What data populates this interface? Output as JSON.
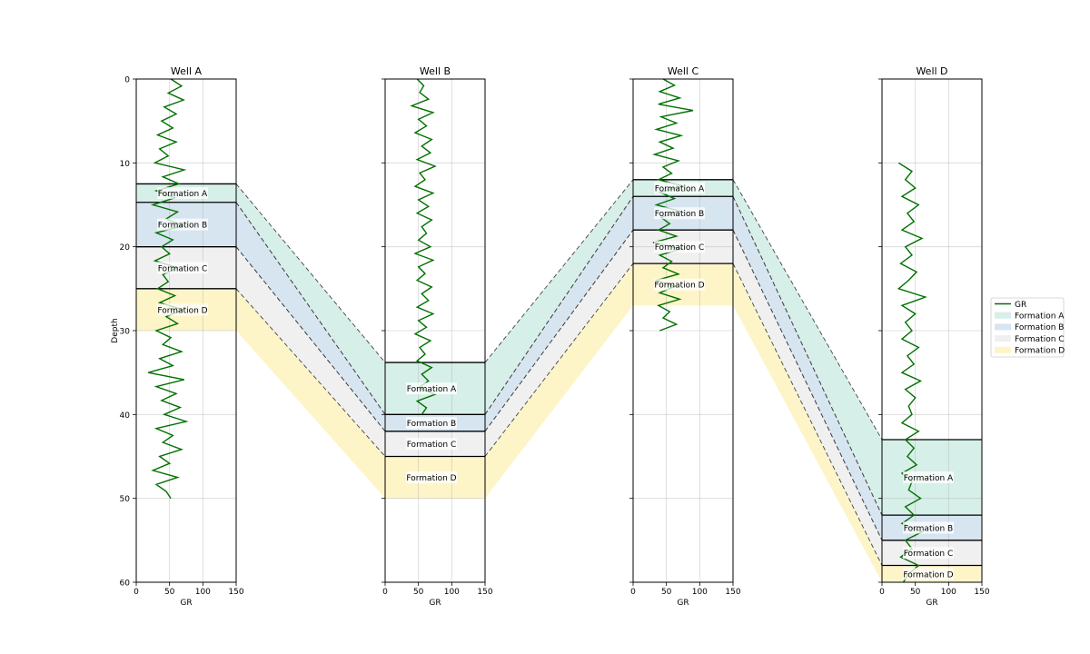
{
  "chart_data": {
    "type": "well-log-correlation",
    "y_axis": {
      "label": "Depth",
      "lim": [
        0,
        60
      ],
      "inverted": true,
      "ticks": [
        0,
        10,
        20,
        30,
        40,
        50,
        60
      ]
    },
    "x_axis": {
      "label": "GR",
      "lim": [
        0,
        150
      ],
      "ticks": [
        0,
        50,
        100,
        150
      ]
    },
    "grid": true,
    "formation_colors": {
      "Formation A": "#d6efe8",
      "Formation B": "#d7e5f1",
      "Formation C": "#f0f0f0",
      "Formation D": "#fdf5c8"
    },
    "log_color": "#007000",
    "wells": [
      {
        "name": "Well A",
        "gr_depth_range": [
          0,
          50
        ],
        "gr": [
          52,
          68,
          48,
          71,
          42,
          60,
          38,
          55,
          32,
          60,
          35,
          48,
          28,
          72,
          40,
          64,
          30,
          58,
          25,
          62,
          45,
          70,
          30,
          55,
          38,
          50,
          28,
          62,
          40,
          48,
          32,
          58,
          35,
          70,
          45,
          62,
          30,
          52,
          40,
          68,
          35,
          55,
          18,
          72,
          30,
          60,
          38,
          66,
          42,
          75,
          30,
          55,
          40,
          68,
          35,
          50,
          25,
          62,
          30,
          45,
          52
        ],
        "formations": [
          {
            "name": "Formation A",
            "top": 12.5,
            "bottom": 14.7
          },
          {
            "name": "Formation B",
            "top": 14.7,
            "bottom": 20.0
          },
          {
            "name": "Formation C",
            "top": 20.0,
            "bottom": 25.0
          },
          {
            "name": "Formation D",
            "top": 25.0,
            "bottom": 30.0
          }
        ]
      },
      {
        "name": "Well B",
        "gr_depth_range": [
          0,
          40
        ],
        "gr": [
          48,
          58,
          52,
          65,
          40,
          72,
          50,
          62,
          45,
          70,
          55,
          68,
          48,
          75,
          52,
          60,
          45,
          72,
          50,
          65,
          48,
          70,
          55,
          62,
          50,
          68,
          45,
          72,
          50,
          60,
          48,
          70,
          55,
          65,
          48,
          72,
          50,
          62,
          45,
          68,
          52,
          60,
          48,
          70,
          55,
          65,
          50,
          75,
          48,
          62,
          55
        ],
        "formations": [
          {
            "name": "Formation A",
            "top": 33.8,
            "bottom": 40.0
          },
          {
            "name": "Formation B",
            "top": 40.0,
            "bottom": 42.0
          },
          {
            "name": "Formation C",
            "top": 42.0,
            "bottom": 45.0
          },
          {
            "name": "Formation D",
            "top": 45.0,
            "bottom": 50.0
          }
        ]
      },
      {
        "name": "Well C",
        "gr_depth_range": [
          0,
          30
        ],
        "gr": [
          45,
          62,
          40,
          70,
          38,
          90,
          42,
          65,
          35,
          72,
          40,
          60,
          32,
          68,
          45,
          58,
          38,
          75,
          40,
          62,
          35,
          70,
          42,
          55,
          38,
          65,
          30,
          72,
          40,
          58,
          45,
          68,
          35,
          62,
          40,
          70,
          38,
          55,
          45,
          65,
          40
        ],
        "formations": [
          {
            "name": "Formation A",
            "top": 12.0,
            "bottom": 14.0
          },
          {
            "name": "Formation B",
            "top": 14.0,
            "bottom": 18.0
          },
          {
            "name": "Formation C",
            "top": 18.0,
            "bottom": 22.0
          },
          {
            "name": "Formation D",
            "top": 22.0,
            "bottom": 27.0
          }
        ]
      },
      {
        "name": "Well D",
        "gr_depth_range": [
          10,
          60
        ],
        "gr": [
          25,
          45,
          35,
          50,
          30,
          55,
          38,
          48,
          30,
          60,
          35,
          45,
          28,
          52,
          40,
          25,
          65,
          30,
          50,
          35,
          45,
          30,
          55,
          38,
          48,
          30,
          58,
          35,
          50,
          40,
          45,
          30,
          55,
          35,
          48,
          38,
          52,
          30,
          45,
          40,
          58,
          35,
          48,
          30,
          60,
          35,
          45,
          28,
          55,
          40,
          32
        ],
        "formations": [
          {
            "name": "Formation A",
            "top": 43.0,
            "bottom": 52.0
          },
          {
            "name": "Formation B",
            "top": 52.0,
            "bottom": 55.0
          },
          {
            "name": "Formation C",
            "top": 55.0,
            "bottom": 58.0
          },
          {
            "name": "Formation D",
            "top": 58.0,
            "bottom": 60.0
          }
        ]
      }
    ],
    "legend": {
      "placement": "right",
      "entries": [
        {
          "label": "GR",
          "kind": "line",
          "color": "#007000"
        },
        {
          "label": "Formation A",
          "kind": "patch",
          "color": "#d6efe8"
        },
        {
          "label": "Formation B",
          "kind": "patch",
          "color": "#d7e5f1"
        },
        {
          "label": "Formation C",
          "kind": "patch",
          "color": "#f0f0f0"
        },
        {
          "label": "Formation D",
          "kind": "patch",
          "color": "#fdf5c8"
        }
      ]
    }
  }
}
